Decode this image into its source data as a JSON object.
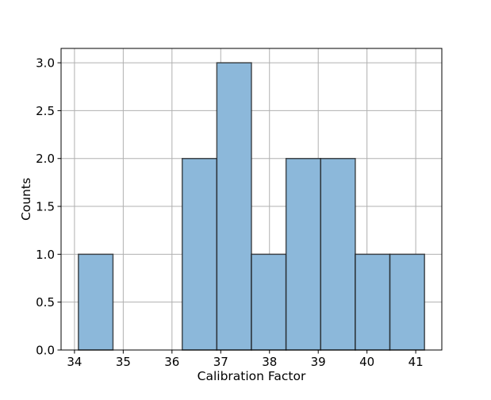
{
  "chart_data": {
    "type": "bar",
    "chart_subtype": "histogram",
    "bin_edges": [
      34.08,
      34.79,
      35.5,
      36.21,
      36.92,
      37.63,
      38.34,
      39.05,
      39.76,
      40.47,
      41.18
    ],
    "values": [
      1,
      0,
      0,
      2,
      3,
      1,
      2,
      2,
      1,
      1
    ],
    "xlabel": "Calibration Factor",
    "ylabel": "Counts",
    "title": "",
    "xlim": [
      33.725,
      41.535
    ],
    "ylim": [
      0,
      3.15
    ],
    "x_ticks": [
      34,
      35,
      36,
      37,
      38,
      39,
      40,
      41
    ],
    "y_ticks": [
      0.0,
      0.5,
      1.0,
      1.5,
      2.0,
      2.5,
      3.0
    ],
    "x_tick_labels": [
      "34",
      "35",
      "36",
      "37",
      "38",
      "39",
      "40",
      "41"
    ],
    "y_tick_labels": [
      "0.0",
      "0.5",
      "1.0",
      "1.5",
      "2.0",
      "2.5",
      "3.0"
    ],
    "grid": true,
    "legend": "none",
    "colors": {
      "bar_fill": "#8cb8da",
      "bar_edge": "#1a1a1a",
      "grid": "#b0b0b0",
      "axis": "#000000"
    }
  }
}
